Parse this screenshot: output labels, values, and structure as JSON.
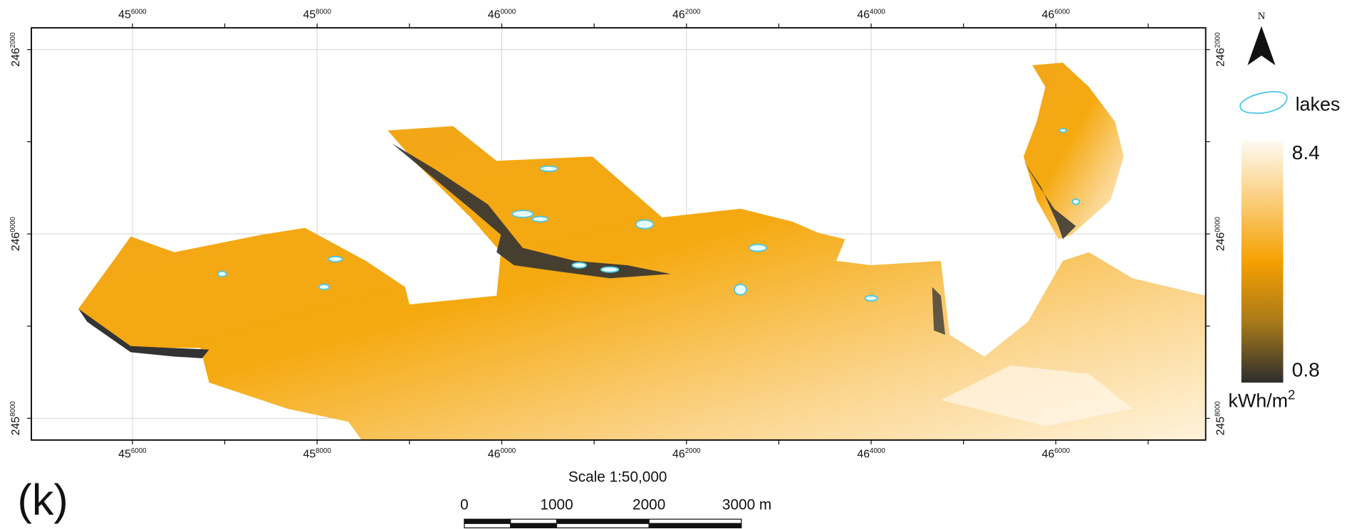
{
  "map": {
    "x_tick_labels": [
      {
        "main": "45",
        "sup": "6000"
      },
      {
        "main": "45",
        "sup": "8000"
      },
      {
        "main": "46",
        "sup": "0000"
      },
      {
        "main": "46",
        "sup": "2000"
      },
      {
        "main": "46",
        "sup": "4000"
      },
      {
        "main": "46",
        "sup": "6000"
      }
    ],
    "y_tick_labels": [
      {
        "main": "246",
        "sup": "2000"
      },
      {
        "main": "246",
        "sup": "0000"
      },
      {
        "main": "245",
        "sup": "8000"
      }
    ],
    "north": "N",
    "legend": {
      "lakes": "lakes",
      "max": "8.4",
      "min": "0.8",
      "unit": "kWh/m",
      "unit_sup": "2"
    },
    "scale": {
      "title": "Scale 1:50,000",
      "labels": [
        "0",
        "1000",
        "2000",
        "3000 m"
      ]
    },
    "panel_label": "(k)"
  }
}
